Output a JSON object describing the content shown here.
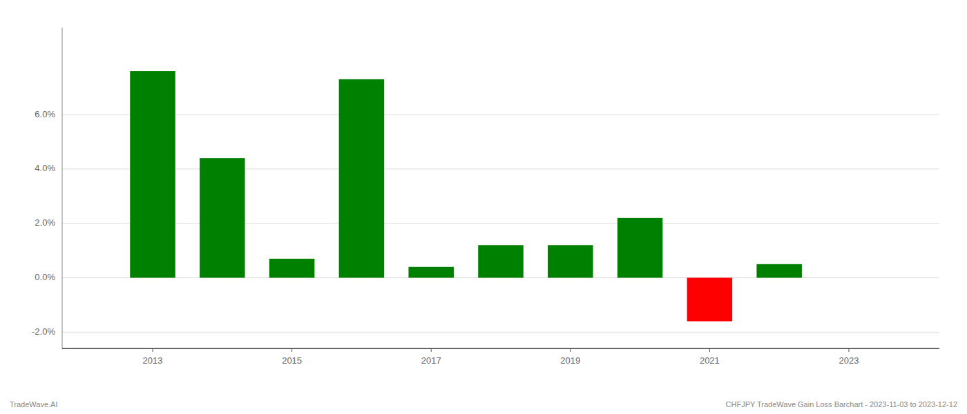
{
  "chart_data": {
    "type": "bar",
    "x": [
      2013,
      2014,
      2015,
      2016,
      2017,
      2018,
      2019,
      2020,
      2021,
      2022
    ],
    "values": [
      0.076,
      0.044,
      0.007,
      0.073,
      0.004,
      0.012,
      0.012,
      0.022,
      -0.016,
      0.005
    ],
    "colors": [
      "#008000",
      "#008000",
      "#008000",
      "#008000",
      "#008000",
      "#008000",
      "#008000",
      "#008000",
      "#FF0000",
      "#008000"
    ],
    "xlim": [
      2011.7,
      2024.3
    ],
    "xticks": [
      2013,
      2015,
      2017,
      2019,
      2021,
      2023
    ],
    "ylim": [
      -0.026,
      0.092
    ],
    "yticks": [
      {
        "value": -0.02,
        "label": "-2.0%"
      },
      {
        "value": 0.0,
        "label": "0.0%"
      },
      {
        "value": 0.02,
        "label": "2.0%"
      },
      {
        "value": 0.04,
        "label": "4.0%"
      },
      {
        "value": 0.06,
        "label": "6.0%"
      }
    ],
    "grid": true,
    "annotations": [
      "TradeWave.AI",
      "CHFJPY TradeWave Gain Loss Barchart - 2023-11-03 to 2023-12-12"
    ]
  }
}
